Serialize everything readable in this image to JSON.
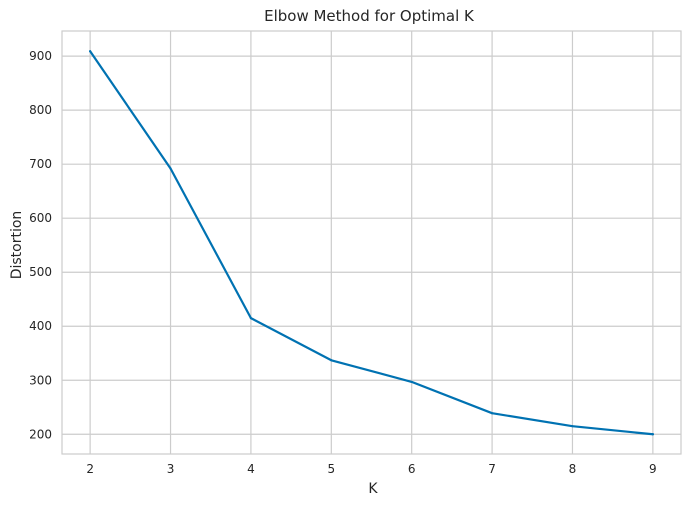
{
  "chart_data": {
    "type": "line",
    "title": "Elbow Method for Optimal K",
    "xlabel": "K",
    "ylabel": "Distortion",
    "x": [
      2,
      3,
      4,
      5,
      6,
      7,
      8,
      9
    ],
    "series": [
      {
        "values": [
          909,
          692,
          415,
          337,
          297,
          239,
          215,
          200
        ],
        "color": "#0072b2"
      }
    ],
    "xlim": [
      1.65,
      9.35
    ],
    "ylim": [
      163.5,
      946.5
    ],
    "xticks": [
      "2",
      "3",
      "4",
      "5",
      "6",
      "7",
      "8",
      "9"
    ],
    "yticks": [
      "200",
      "300",
      "400",
      "500",
      "600",
      "700",
      "800",
      "900"
    ],
    "grid": true,
    "grid_color": "#cccccc",
    "legend": "none"
  }
}
